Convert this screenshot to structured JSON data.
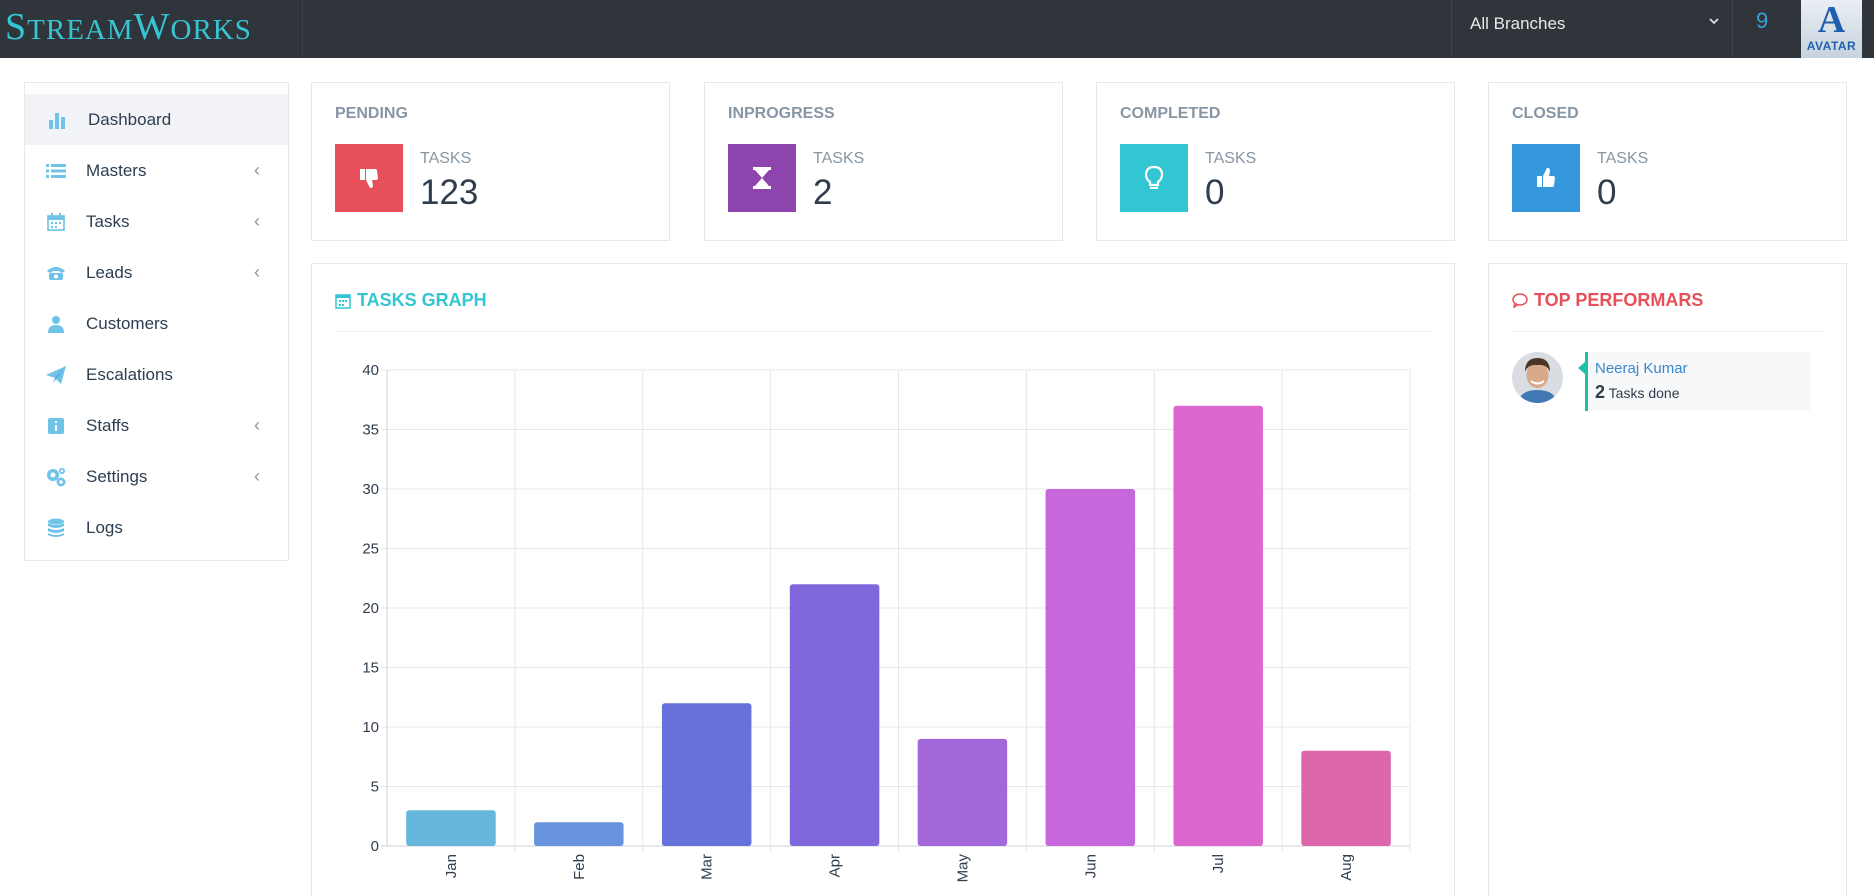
{
  "app": {
    "brand_cap1": "S",
    "brand_rest1": "TREAM",
    "brand_cap2": "W",
    "brand_rest2": "ORKS",
    "branch_selected": "All Branches",
    "notification_count": "9",
    "avatar_logo_glyph": "A",
    "avatar_logo_text": "AVATAR"
  },
  "sidebar": {
    "items": [
      {
        "label": "Dashboard",
        "icon": "bar-chart-icon"
      },
      {
        "label": "Masters",
        "icon": "list-icon",
        "has_submenu": true
      },
      {
        "label": "Tasks",
        "icon": "calendar-icon",
        "has_submenu": true
      },
      {
        "label": "Leads",
        "icon": "phone-icon",
        "has_submenu": true
      },
      {
        "label": "Customers",
        "icon": "user-icon"
      },
      {
        "label": "Escalations",
        "icon": "paper-plane-icon"
      },
      {
        "label": "Staffs",
        "icon": "id-badge-icon",
        "has_submenu": true
      },
      {
        "label": "Settings",
        "icon": "gears-icon",
        "has_submenu": true
      },
      {
        "label": "Logs",
        "icon": "database-icon"
      }
    ],
    "submenu_arrow": "‹"
  },
  "stats": [
    {
      "title": "PENDING",
      "label": "TASKS",
      "value": "123",
      "color": "#e7505a",
      "icon": "thumbs-down-icon"
    },
    {
      "title": "INPROGRESS",
      "label": "TASKS",
      "value": "2",
      "color": "#8e44ad",
      "icon": "hourglass-icon"
    },
    {
      "title": "COMPLETED",
      "label": "TASKS",
      "value": "0",
      "color": "#32c5d2",
      "icon": "lightbulb-icon"
    },
    {
      "title": "CLOSED",
      "label": "TASKS",
      "value": "0",
      "color": "#3598dc",
      "icon": "thumbs-up-icon"
    }
  ],
  "graph": {
    "title": "TASKS GRAPH",
    "title_color": "#32c5d2"
  },
  "chart_data": {
    "type": "bar",
    "categories": [
      "Jan",
      "Feb",
      "Mar",
      "Apr",
      "May",
      "Jun",
      "Jul",
      "Aug"
    ],
    "values": [
      3,
      2,
      12,
      22,
      9,
      30,
      37,
      8
    ],
    "colors": [
      "#67b7dc",
      "#6794dc",
      "#6771dc",
      "#8067dc",
      "#a367dc",
      "#c767dc",
      "#dc67ce",
      "#dc67ab"
    ],
    "ylim": [
      0,
      40
    ],
    "yticks": [
      0,
      5,
      10,
      15,
      20,
      25,
      30,
      35,
      40
    ],
    "grid": true,
    "title": "",
    "xlabel": "",
    "ylabel": ""
  },
  "performers": {
    "title": "TOP PERFORMARS",
    "title_color": "#e7505a",
    "list": [
      {
        "name": "Neeraj Kumar",
        "count": "2",
        "suffix": "Tasks done"
      }
    ]
  }
}
